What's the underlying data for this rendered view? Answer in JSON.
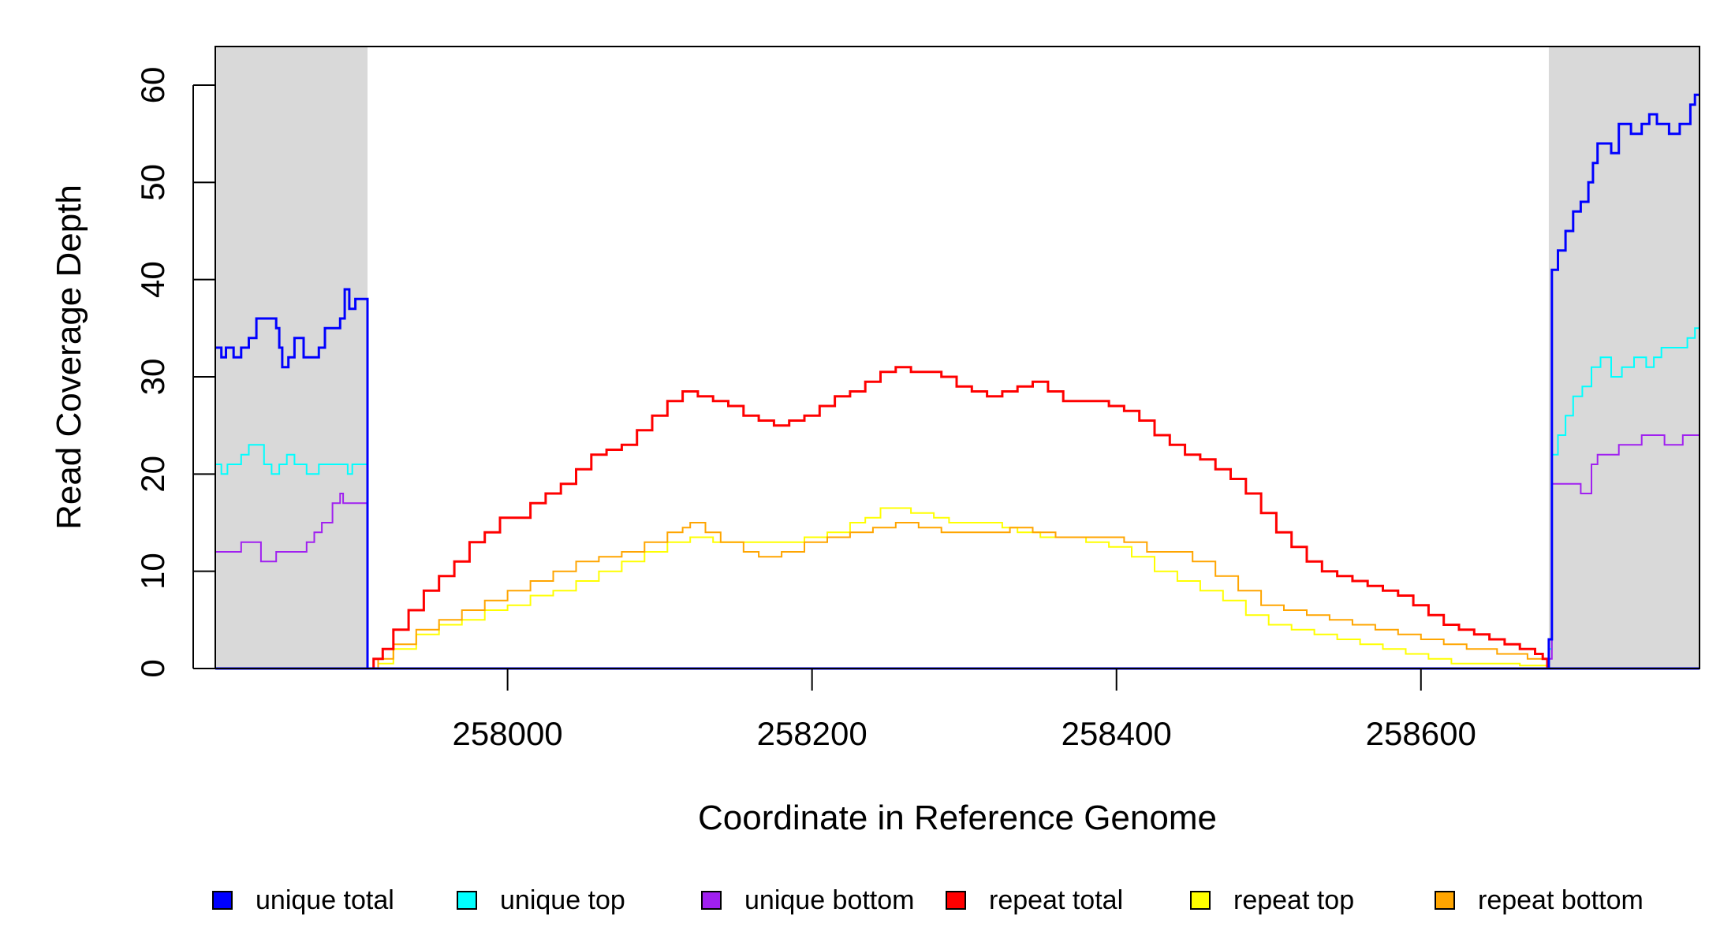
{
  "chart_data": {
    "type": "line",
    "xlabel": "Coordinate in Reference Genome",
    "ylabel": "Read Coverage Depth",
    "xlim": [
      257808,
      258783
    ],
    "ylim": [
      0,
      64
    ],
    "grid": false,
    "x_ticks": [
      258000,
      258200,
      258400,
      258600
    ],
    "y_ticks": [
      0,
      10,
      20,
      30,
      40,
      50,
      60
    ],
    "shaded_regions": [
      {
        "x_start": 257808,
        "x_end": 257908,
        "color": "#d9d9d9"
      },
      {
        "x_start": 258684,
        "x_end": 258783,
        "color": "#d9d9d9"
      }
    ],
    "legend_position": "bottom",
    "series": [
      {
        "name": "unique total",
        "color": "#0000ff",
        "step": true,
        "width": "thick",
        "points": [
          [
            257808,
            33
          ],
          [
            257812,
            32
          ],
          [
            257815,
            33
          ],
          [
            257820,
            32
          ],
          [
            257825,
            33
          ],
          [
            257830,
            34
          ],
          [
            257835,
            36
          ],
          [
            257848,
            35
          ],
          [
            257850,
            33
          ],
          [
            257852,
            31
          ],
          [
            257856,
            32
          ],
          [
            257860,
            34
          ],
          [
            257866,
            32
          ],
          [
            257876,
            33
          ],
          [
            257880,
            35
          ],
          [
            257890,
            36
          ],
          [
            257893,
            39
          ],
          [
            257896,
            37
          ],
          [
            257900,
            38
          ],
          [
            257908,
            38
          ],
          [
            257908,
            0
          ],
          [
            258683,
            0
          ],
          [
            258684,
            3
          ],
          [
            258686,
            41
          ],
          [
            258690,
            43
          ],
          [
            258695,
            45
          ],
          [
            258700,
            47
          ],
          [
            258705,
            48
          ],
          [
            258710,
            50
          ],
          [
            258713,
            52
          ],
          [
            258716,
            54
          ],
          [
            258725,
            53
          ],
          [
            258730,
            56
          ],
          [
            258738,
            55
          ],
          [
            258745,
            56
          ],
          [
            258750,
            57
          ],
          [
            258755,
            56
          ],
          [
            258763,
            55
          ],
          [
            258770,
            56
          ],
          [
            258777,
            58
          ],
          [
            258780,
            59
          ],
          [
            258783,
            59
          ]
        ]
      },
      {
        "name": "unique top",
        "color": "#00ffff",
        "step": true,
        "width": "thin",
        "points": [
          [
            257808,
            21
          ],
          [
            257812,
            20
          ],
          [
            257816,
            21
          ],
          [
            257825,
            22
          ],
          [
            257830,
            23
          ],
          [
            257840,
            21
          ],
          [
            257845,
            20
          ],
          [
            257850,
            21
          ],
          [
            257855,
            22
          ],
          [
            257860,
            21
          ],
          [
            257868,
            20
          ],
          [
            257876,
            21
          ],
          [
            257895,
            20
          ],
          [
            257898,
            21
          ],
          [
            257908,
            21
          ],
          [
            257908,
            0
          ],
          [
            258683,
            0
          ],
          [
            258684,
            2
          ],
          [
            258686,
            22
          ],
          [
            258690,
            24
          ],
          [
            258695,
            26
          ],
          [
            258700,
            28
          ],
          [
            258706,
            29
          ],
          [
            258712,
            31
          ],
          [
            258718,
            32
          ],
          [
            258725,
            30
          ],
          [
            258732,
            31
          ],
          [
            258740,
            32
          ],
          [
            258748,
            31
          ],
          [
            258753,
            32
          ],
          [
            258758,
            33
          ],
          [
            258770,
            33
          ],
          [
            258775,
            34
          ],
          [
            258780,
            35
          ],
          [
            258783,
            35
          ]
        ]
      },
      {
        "name": "unique bottom",
        "color": "#a020f0",
        "step": true,
        "width": "thin",
        "points": [
          [
            257808,
            12
          ],
          [
            257825,
            13
          ],
          [
            257838,
            11
          ],
          [
            257848,
            12
          ],
          [
            257858,
            12
          ],
          [
            257868,
            13
          ],
          [
            257873,
            14
          ],
          [
            257878,
            15
          ],
          [
            257885,
            17
          ],
          [
            257890,
            18
          ],
          [
            257892,
            17
          ],
          [
            257908,
            17
          ],
          [
            257908,
            0
          ],
          [
            258683,
            0
          ],
          [
            258684,
            1
          ],
          [
            258686,
            19
          ],
          [
            258705,
            18
          ],
          [
            258712,
            21
          ],
          [
            258716,
            22
          ],
          [
            258730,
            23
          ],
          [
            258745,
            24
          ],
          [
            258760,
            23
          ],
          [
            258772,
            24
          ],
          [
            258783,
            24
          ]
        ]
      },
      {
        "name": "repeat total",
        "color": "#ff0000",
        "step": true,
        "width": "thick",
        "points": [
          [
            257908,
            0
          ],
          [
            257912,
            1
          ],
          [
            257918,
            2
          ],
          [
            257925,
            4
          ],
          [
            257935,
            6
          ],
          [
            257945,
            8
          ],
          [
            257955,
            9.5
          ],
          [
            257965,
            11
          ],
          [
            257975,
            13
          ],
          [
            257985,
            14
          ],
          [
            257995,
            15.5
          ],
          [
            258005,
            15.5
          ],
          [
            258015,
            17
          ],
          [
            258025,
            18
          ],
          [
            258035,
            19
          ],
          [
            258045,
            20.5
          ],
          [
            258055,
            22
          ],
          [
            258065,
            22.5
          ],
          [
            258075,
            23
          ],
          [
            258085,
            24.5
          ],
          [
            258095,
            26
          ],
          [
            258105,
            27.5
          ],
          [
            258115,
            28.5
          ],
          [
            258125,
            28
          ],
          [
            258135,
            27.5
          ],
          [
            258145,
            27
          ],
          [
            258155,
            26
          ],
          [
            258165,
            25.5
          ],
          [
            258175,
            25
          ],
          [
            258185,
            25.5
          ],
          [
            258195,
            26
          ],
          [
            258205,
            27
          ],
          [
            258215,
            28
          ],
          [
            258225,
            28.5
          ],
          [
            258235,
            29.5
          ],
          [
            258245,
            30.5
          ],
          [
            258255,
            31
          ],
          [
            258265,
            30.5
          ],
          [
            258275,
            30.5
          ],
          [
            258285,
            30
          ],
          [
            258295,
            29
          ],
          [
            258305,
            28.5
          ],
          [
            258315,
            28
          ],
          [
            258325,
            28.5
          ],
          [
            258335,
            29
          ],
          [
            258345,
            29.5
          ],
          [
            258355,
            28.5
          ],
          [
            258365,
            27.5
          ],
          [
            258375,
            27.5
          ],
          [
            258385,
            27.5
          ],
          [
            258395,
            27
          ],
          [
            258405,
            26.5
          ],
          [
            258415,
            25.5
          ],
          [
            258425,
            24
          ],
          [
            258435,
            23
          ],
          [
            258445,
            22
          ],
          [
            258455,
            21.5
          ],
          [
            258465,
            20.5
          ],
          [
            258475,
            19.5
          ],
          [
            258485,
            18
          ],
          [
            258495,
            16
          ],
          [
            258505,
            14
          ],
          [
            258515,
            12.5
          ],
          [
            258525,
            11
          ],
          [
            258535,
            10
          ],
          [
            258545,
            9.5
          ],
          [
            258555,
            9
          ],
          [
            258565,
            8.5
          ],
          [
            258575,
            8
          ],
          [
            258585,
            7.5
          ],
          [
            258595,
            6.5
          ],
          [
            258605,
            5.5
          ],
          [
            258615,
            4.5
          ],
          [
            258625,
            4
          ],
          [
            258635,
            3.5
          ],
          [
            258645,
            3
          ],
          [
            258655,
            2.5
          ],
          [
            258665,
            2
          ],
          [
            258675,
            1.5
          ],
          [
            258680,
            1
          ],
          [
            258683,
            0
          ]
        ]
      },
      {
        "name": "repeat top",
        "color": "#ffff00",
        "step": true,
        "width": "thin",
        "points": [
          [
            257908,
            0
          ],
          [
            257915,
            0.5
          ],
          [
            257925,
            2
          ],
          [
            257940,
            3.5
          ],
          [
            257955,
            4.5
          ],
          [
            257970,
            5
          ],
          [
            257985,
            6
          ],
          [
            258000,
            6.5
          ],
          [
            258015,
            7.5
          ],
          [
            258030,
            8
          ],
          [
            258045,
            9
          ],
          [
            258060,
            10
          ],
          [
            258075,
            11
          ],
          [
            258090,
            12
          ],
          [
            258105,
            13
          ],
          [
            258120,
            13.5
          ],
          [
            258135,
            13
          ],
          [
            258150,
            13
          ],
          [
            258165,
            13
          ],
          [
            258180,
            13
          ],
          [
            258195,
            13.5
          ],
          [
            258210,
            14
          ],
          [
            258225,
            15
          ],
          [
            258235,
            15.5
          ],
          [
            258245,
            16.5
          ],
          [
            258265,
            16
          ],
          [
            258280,
            15.5
          ],
          [
            258290,
            15
          ],
          [
            258310,
            15
          ],
          [
            258325,
            14.5
          ],
          [
            258335,
            14
          ],
          [
            258350,
            13.5
          ],
          [
            258365,
            13.5
          ],
          [
            258380,
            13
          ],
          [
            258395,
            12.5
          ],
          [
            258410,
            11.5
          ],
          [
            258425,
            10
          ],
          [
            258440,
            9
          ],
          [
            258455,
            8
          ],
          [
            258470,
            7
          ],
          [
            258485,
            5.5
          ],
          [
            258500,
            4.5
          ],
          [
            258515,
            4
          ],
          [
            258530,
            3.5
          ],
          [
            258545,
            3
          ],
          [
            258560,
            2.5
          ],
          [
            258575,
            2
          ],
          [
            258590,
            1.5
          ],
          [
            258605,
            1
          ],
          [
            258620,
            0.5
          ],
          [
            258640,
            0.5
          ],
          [
            258665,
            0.3
          ],
          [
            258683,
            0
          ]
        ]
      },
      {
        "name": "repeat bottom",
        "color": "#ffa500",
        "step": true,
        "width": "thin",
        "points": [
          [
            257908,
            0
          ],
          [
            257915,
            1
          ],
          [
            257925,
            2.5
          ],
          [
            257940,
            4
          ],
          [
            257955,
            5
          ],
          [
            257970,
            6
          ],
          [
            257985,
            7
          ],
          [
            258000,
            8
          ],
          [
            258015,
            9
          ],
          [
            258030,
            10
          ],
          [
            258045,
            11
          ],
          [
            258060,
            11.5
          ],
          [
            258075,
            12
          ],
          [
            258090,
            13
          ],
          [
            258105,
            14
          ],
          [
            258115,
            14.5
          ],
          [
            258120,
            15
          ],
          [
            258130,
            14
          ],
          [
            258140,
            13
          ],
          [
            258155,
            12
          ],
          [
            258165,
            11.5
          ],
          [
            258180,
            12
          ],
          [
            258195,
            13
          ],
          [
            258210,
            13.5
          ],
          [
            258225,
            14
          ],
          [
            258240,
            14.5
          ],
          [
            258255,
            15
          ],
          [
            258270,
            14.5
          ],
          [
            258285,
            14
          ],
          [
            258300,
            14
          ],
          [
            258315,
            14
          ],
          [
            258330,
            14.5
          ],
          [
            258345,
            14
          ],
          [
            258360,
            13.5
          ],
          [
            258375,
            13.5
          ],
          [
            258390,
            13.5
          ],
          [
            258405,
            13
          ],
          [
            258420,
            12
          ],
          [
            258435,
            12
          ],
          [
            258450,
            11
          ],
          [
            258465,
            9.5
          ],
          [
            258480,
            8
          ],
          [
            258495,
            6.5
          ],
          [
            258510,
            6
          ],
          [
            258525,
            5.5
          ],
          [
            258540,
            5
          ],
          [
            258555,
            4.5
          ],
          [
            258570,
            4
          ],
          [
            258585,
            3.5
          ],
          [
            258600,
            3
          ],
          [
            258615,
            2.5
          ],
          [
            258630,
            2
          ],
          [
            258650,
            1.5
          ],
          [
            258670,
            1
          ],
          [
            258683,
            0
          ]
        ]
      }
    ]
  }
}
